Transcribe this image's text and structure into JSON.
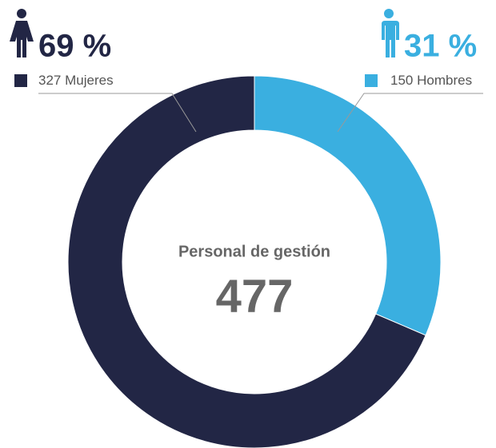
{
  "chart_data": {
    "type": "donut",
    "categories": [
      "Mujeres",
      "Hombres"
    ],
    "values": [
      327,
      150
    ],
    "colors": [
      "#222645",
      "#3aafe0"
    ],
    "percent_labels": [
      "69 %",
      "31 %"
    ],
    "center_label": "Personal de gestión",
    "total": 477
  }
}
